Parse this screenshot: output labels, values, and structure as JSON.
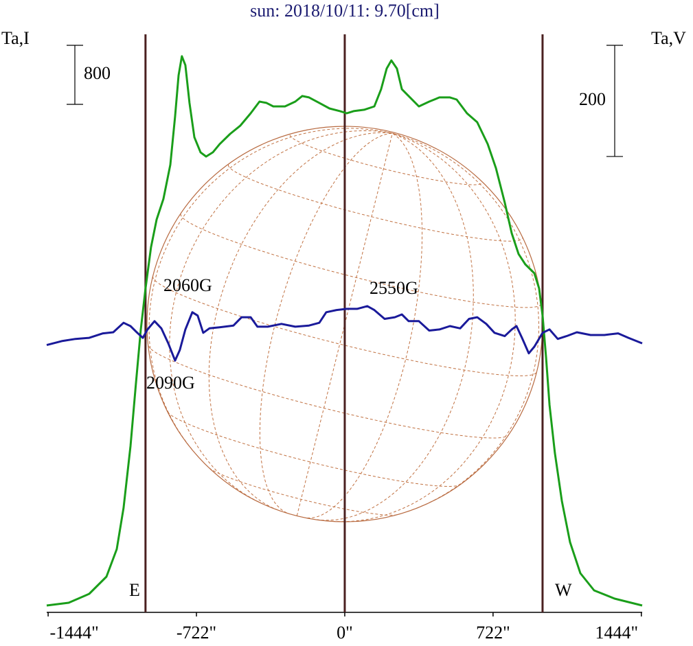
{
  "chart_data": {
    "type": "line",
    "title": "sun: 2018/10/11: 9.70[cm]",
    "y_label": "Ta,I",
    "y2_label": "Ta,V",
    "xlim": [
      -1451,
      1448
    ],
    "ylim": [
      0,
      7830
    ],
    "y2lim": [
      -488,
      552
    ],
    "xticks": [
      {
        "value": -1444,
        "label": "-1444\""
      },
      {
        "value": -722,
        "label": "-722\""
      },
      {
        "value": 0,
        "label": "0\""
      },
      {
        "value": 722,
        "label": "722\""
      },
      {
        "value": 1444,
        "label": "1444\""
      }
    ],
    "scale_bars": [
      {
        "value": 800,
        "axis": "y"
      },
      {
        "value": 200,
        "axis": "y2"
      }
    ],
    "markers": [
      {
        "x": -970,
        "label": "E"
      },
      {
        "x": 0
      },
      {
        "x": 963,
        "label": "W"
      }
    ],
    "annotations": [
      "2060G",
      "2090G",
      "2550G"
    ],
    "series": [
      {
        "color": "#1a9e1a",
        "x": [
          -1451,
          -1344,
          -1244,
          -1160,
          -1110,
          -1077,
          -1043,
          -1017,
          -993,
          -970,
          -943,
          -916,
          -883,
          -849,
          -826,
          -809,
          -793,
          -776,
          -756,
          -732,
          -702,
          -675,
          -642,
          -609,
          -558,
          -508,
          -458,
          -415,
          -381,
          -348,
          -291,
          -241,
          -207,
          -174,
          -124,
          -74,
          -23,
          10,
          43,
          94,
          144,
          177,
          204,
          227,
          254,
          278,
          311,
          361,
          411,
          461,
          512,
          545,
          595,
          645,
          696,
          736,
          779,
          813,
          846,
          879,
          923,
          946,
          963,
          980,
          997,
          1023,
          1057,
          1097,
          1147,
          1214,
          1314,
          1448
        ],
        "values": [
          93,
          130,
          251,
          484,
          856,
          1414,
          2251,
          3088,
          3832,
          4390,
          4948,
          5320,
          5599,
          6064,
          6715,
          7273,
          7533,
          7412,
          6901,
          6436,
          6231,
          6175,
          6231,
          6343,
          6482,
          6594,
          6761,
          6919,
          6901,
          6854,
          6854,
          6919,
          6994,
          6975,
          6901,
          6826,
          6789,
          6761,
          6789,
          6808,
          6854,
          7087,
          7366,
          7477,
          7366,
          7087,
          6994,
          6854,
          6919,
          6975,
          6975,
          6947,
          6761,
          6640,
          6343,
          6017,
          5552,
          5134,
          4855,
          4715,
          4594,
          4390,
          4018,
          3460,
          2809,
          2158,
          1507,
          949,
          530,
          298,
          186,
          93
        ]
      },
      {
        "color": "#1a1a9a",
        "axis": "y2",
        "x": [
          -1451,
          -1378,
          -1311,
          -1244,
          -1177,
          -1127,
          -1077,
          -1043,
          -1010,
          -983,
          -960,
          -926,
          -893,
          -859,
          -826,
          -803,
          -776,
          -742,
          -716,
          -689,
          -659,
          -609,
          -542,
          -502,
          -458,
          -425,
          -375,
          -308,
          -241,
          -174,
          -124,
          -90,
          -40,
          10,
          60,
          110,
          144,
          194,
          244,
          278,
          311,
          361,
          411,
          461,
          512,
          562,
          605,
          645,
          689,
          729,
          779,
          813,
          836,
          863,
          896,
          923,
          963,
          997,
          1037,
          1080,
          1130,
          1197,
          1264,
          1331,
          1381,
          1448
        ],
        "values": [
          -7,
          0,
          4,
          6,
          14,
          16,
          33,
          27,
          15,
          6,
          21,
          36,
          23,
          -4,
          -35,
          -16,
          21,
          52,
          46,
          15,
          23,
          25,
          28,
          43,
          43,
          26,
          26,
          31,
          26,
          28,
          33,
          52,
          56,
          58,
          58,
          63,
          56,
          40,
          43,
          48,
          36,
          36,
          19,
          21,
          27,
          23,
          40,
          43,
          31,
          15,
          9,
          21,
          27,
          6,
          -22,
          -10,
          15,
          21,
          4,
          9,
          16,
          11,
          11,
          14,
          6,
          -4
        ]
      }
    ]
  }
}
